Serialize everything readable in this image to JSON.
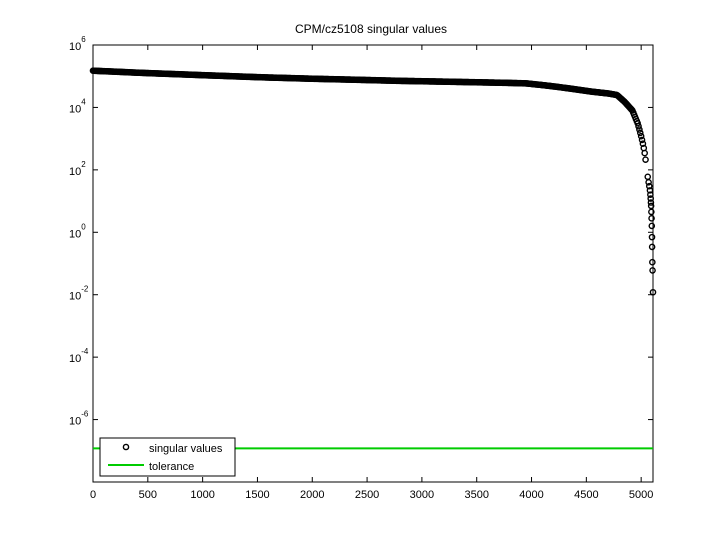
{
  "chart_data": {
    "type": "scatter",
    "title": "CPM/cz5108 singular values",
    "xlabel": "",
    "ylabel": "",
    "xlim": [
      0,
      5108
    ],
    "ylim_log10": [
      -8,
      6
    ],
    "y_scale": "log",
    "x_ticks": [
      0,
      500,
      1000,
      1500,
      2000,
      2500,
      3000,
      3500,
      4000,
      4500,
      5000
    ],
    "x_tick_labels": [
      "0",
      "500",
      "1000",
      "1500",
      "2000",
      "2500",
      "3000",
      "3500",
      "4000",
      "4500",
      "5000"
    ],
    "y_ticks": [
      {
        "base": "10",
        "exp": "6"
      },
      {
        "base": "10",
        "exp": "4"
      },
      {
        "base": "10",
        "exp": "2"
      },
      {
        "base": "10",
        "exp": "0"
      },
      {
        "base": "10",
        "exp": "-2"
      },
      {
        "base": "10",
        "exp": "-4"
      },
      {
        "base": "10",
        "exp": "-6"
      }
    ],
    "series": [
      {
        "name": "singular values",
        "marker": "circle",
        "color": "#000000",
        "points": [
          [
            0,
            150000
          ],
          [
            200,
            140000
          ],
          [
            400,
            130000
          ],
          [
            600,
            122000
          ],
          [
            800,
            115000
          ],
          [
            1000,
            108000
          ],
          [
            1200,
            102000
          ],
          [
            1400,
            96000
          ],
          [
            1600,
            91000
          ],
          [
            1800,
            87000
          ],
          [
            2000,
            83000
          ],
          [
            2200,
            80000
          ],
          [
            2400,
            77000
          ],
          [
            2600,
            74000
          ],
          [
            2800,
            71000
          ],
          [
            3000,
            69000
          ],
          [
            3200,
            67000
          ],
          [
            3400,
            65000
          ],
          [
            3600,
            63000
          ],
          [
            3800,
            61000
          ],
          [
            3950,
            59000
          ],
          [
            4100,
            52000
          ],
          [
            4250,
            45000
          ],
          [
            4400,
            38000
          ],
          [
            4550,
            32000
          ],
          [
            4700,
            28000
          ],
          [
            4780,
            25000
          ],
          [
            4850,
            15000
          ],
          [
            4920,
            8000
          ],
          [
            4970,
            3000
          ],
          [
            5000,
            1200
          ],
          [
            5020,
            600
          ],
          [
            5035,
            300
          ],
          [
            5045,
            150
          ],
          [
            5055,
            90
          ],
          [
            5065,
            60
          ],
          [
            5075,
            40
          ],
          [
            5085,
            30
          ],
          [
            5090,
            20
          ],
          [
            5093,
            10
          ],
          [
            5096,
            5
          ],
          [
            5098,
            2.5
          ],
          [
            5100,
            1.3
          ],
          [
            5102,
            0.7
          ],
          [
            5104,
            0.1
          ],
          [
            5106,
            0.06
          ],
          [
            5108,
            0.012
          ]
        ]
      },
      {
        "name": "tolerance",
        "style": "line",
        "color": "#00cc00",
        "value": 1.2e-07
      }
    ],
    "legend_position": "bottom-left",
    "grid": false
  }
}
